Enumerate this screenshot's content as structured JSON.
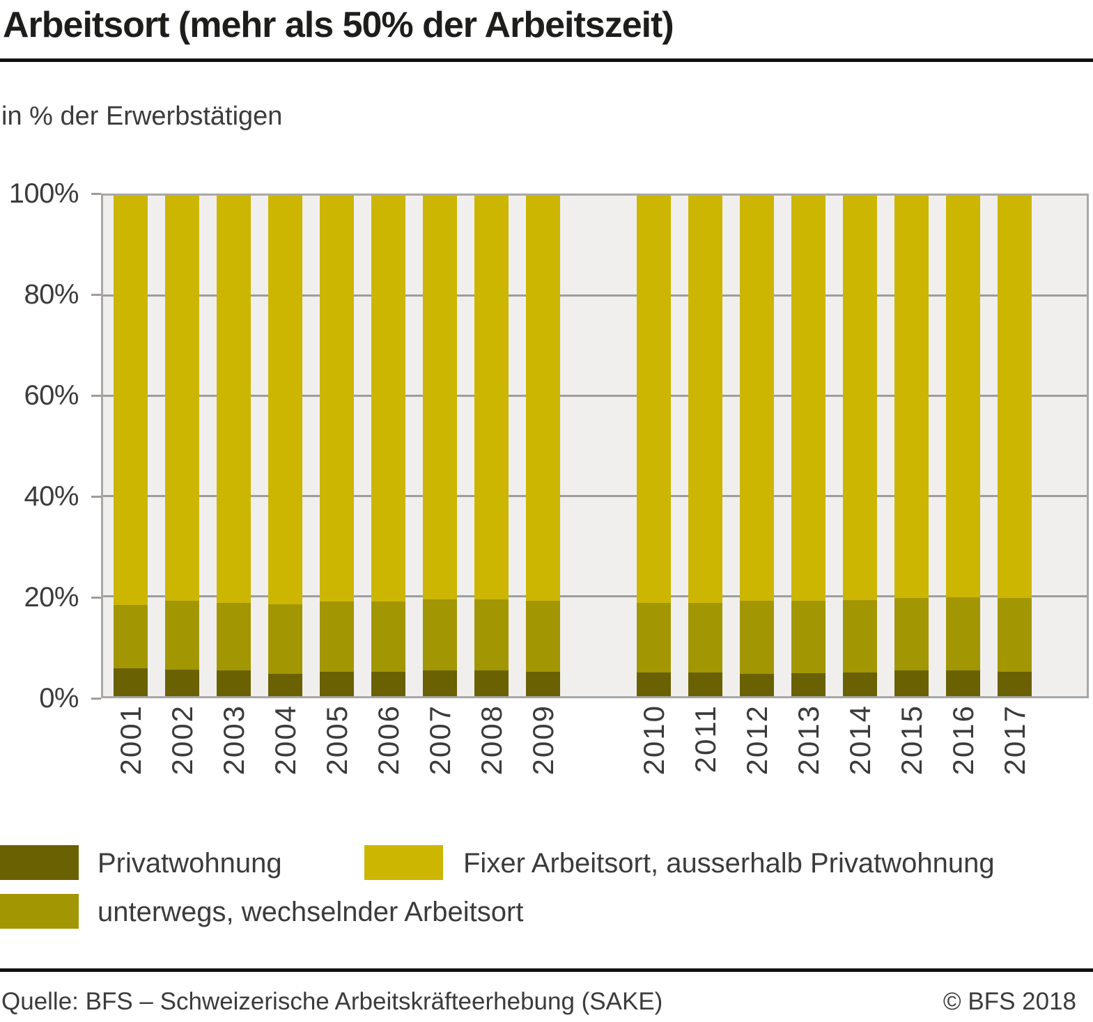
{
  "header": {
    "title": "Arbeitsort (mehr als 50% der Arbeitszeit)",
    "subtitle": "in % der Erwerbstätigen"
  },
  "chart_data": {
    "type": "bar",
    "stacked": true,
    "unit": "%",
    "title": "Arbeitsort (mehr als 50% der Arbeitszeit)",
    "ylabel": "in % der Erwerbstätigen",
    "ylim": [
      0,
      100
    ],
    "yticks": [
      "0%",
      "20%",
      "40%",
      "60%",
      "80%",
      "100%"
    ],
    "grid": true,
    "legend_position": "bottom",
    "gap_after": "2009",
    "categories": [
      "2001",
      "2002",
      "2003",
      "2004",
      "2005",
      "2006",
      "2007",
      "2008",
      "2009",
      "2010",
      "2011",
      "2012",
      "2013",
      "2014",
      "2015",
      "2016",
      "2017"
    ],
    "series": [
      {
        "name": "Privatwohnung",
        "color": "#696102",
        "values": [
          5.6,
          5.3,
          5.1,
          4.5,
          4.8,
          4.9,
          5.1,
          5.2,
          4.9,
          4.7,
          4.7,
          4.5,
          4.6,
          4.7,
          5.1,
          5.2,
          4.9
        ]
      },
      {
        "name": "unterwegs, wechselnder Arbeitsort",
        "color": "#a29602",
        "values": [
          12.6,
          13.7,
          13.6,
          13.8,
          14.1,
          14.0,
          14.3,
          14.1,
          14.1,
          13.9,
          14.0,
          14.5,
          14.5,
          14.5,
          14.5,
          14.6,
          14.7
        ]
      },
      {
        "name": "Fixer Arbeitsort, ausserhalb Privatwohnung",
        "color": "#ccb602",
        "values": [
          81.8,
          81.0,
          81.3,
          81.7,
          81.1,
          81.1,
          80.6,
          80.7,
          81.0,
          81.4,
          81.3,
          81.0,
          80.9,
          80.8,
          80.4,
          80.2,
          80.4
        ]
      }
    ]
  },
  "footer": {
    "source": "Quelle: BFS – Schweizerische Arbeitskräfteerhebung (SAKE)",
    "copyright": "© BFS 2018"
  }
}
